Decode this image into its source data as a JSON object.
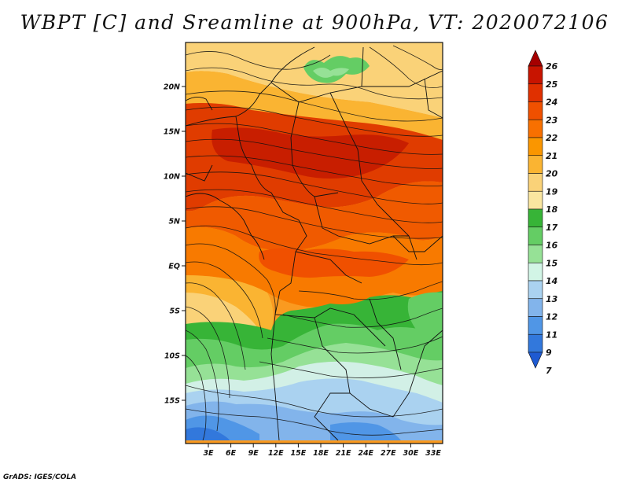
{
  "title": "WBPT [C] and Sreamline at 900hPa, VT: 2020072106",
  "credit": "GrADS: IGES/COLA",
  "map": {
    "lat_labels": [
      "20N",
      "15N",
      "10N",
      "5N",
      "EQ",
      "5S",
      "10S",
      "15S"
    ],
    "lon_labels": [
      "3E",
      "6E",
      "9E",
      "12E",
      "15E",
      "18E",
      "21E",
      "24E",
      "27E",
      "30E",
      "33E"
    ],
    "field": "wet-bulb potential temperature",
    "overlay": "streamlines"
  },
  "colorbar": {
    "labels": [
      "26",
      "25",
      "24",
      "23",
      "22",
      "21",
      "20",
      "19",
      "18",
      "17",
      "16",
      "15",
      "14",
      "13",
      "12",
      "11",
      "9",
      "7"
    ],
    "colors": [
      "#a50000",
      "#c81400",
      "#e03000",
      "#f05000",
      "#f87000",
      "#fa9600",
      "#fab432",
      "#fad278",
      "#fae6a0",
      "#37b437",
      "#64cd64",
      "#96e196",
      "#d2f5e6",
      "#aad2f0",
      "#82b4eb",
      "#5096e6",
      "#3278dc",
      "#1e5ad2"
    ]
  }
}
